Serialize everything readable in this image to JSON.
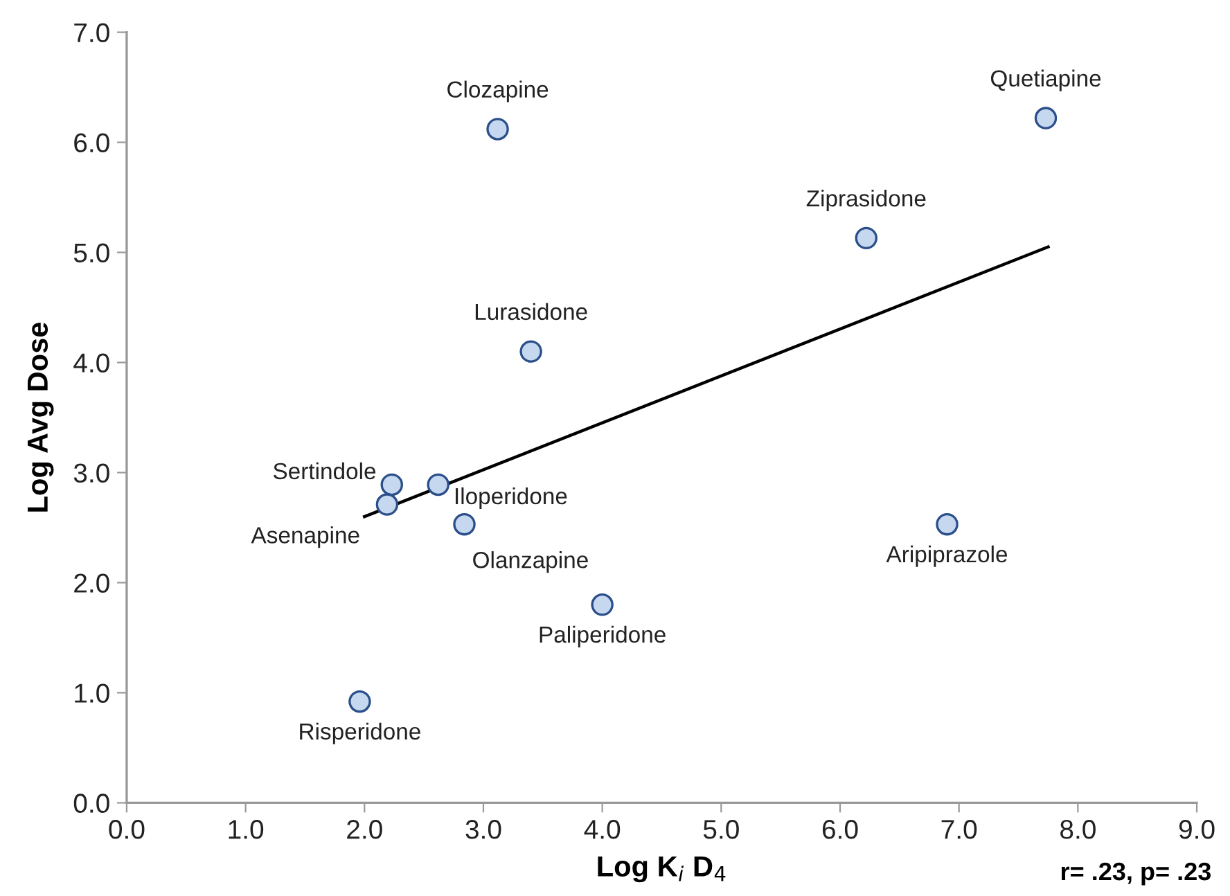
{
  "chart_data": {
    "type": "scatter",
    "xlabel": "Log K$_{i}$ D$_{4}$",
    "ylabel": "Log Avg Dose",
    "xlim": [
      0,
      9
    ],
    "ylim": [
      0,
      7
    ],
    "xticks": [
      {
        "value": 0,
        "label": "0.0"
      },
      {
        "value": 1,
        "label": "1.0"
      },
      {
        "value": 2,
        "label": "2.0"
      },
      {
        "value": 3,
        "label": "3.0"
      },
      {
        "value": 4,
        "label": "4.0"
      },
      {
        "value": 5,
        "label": "5.0"
      },
      {
        "value": 6,
        "label": "6.0"
      },
      {
        "value": 7,
        "label": "7.0"
      },
      {
        "value": 8,
        "label": "8.0"
      },
      {
        "value": 9,
        "label": "9.0"
      }
    ],
    "yticks": [
      {
        "value": 0,
        "label": "0.0"
      },
      {
        "value": 1,
        "label": "1.0"
      },
      {
        "value": 2,
        "label": "2.0"
      },
      {
        "value": 3,
        "label": "3.0"
      },
      {
        "value": 4,
        "label": "4.0"
      },
      {
        "value": 5,
        "label": "5.0"
      },
      {
        "value": 6,
        "label": "6.0"
      },
      {
        "value": 7,
        "label": "7.0"
      }
    ],
    "grid": false,
    "legend": false,
    "series": [
      {
        "marker": "circle",
        "color": "#c6d8ef",
        "x": [
          3.12,
          7.73,
          6.22,
          3.4,
          2.23,
          2.62,
          2.19,
          2.84,
          4.0,
          6.9,
          1.96
        ],
        "values": [
          6.12,
          6.22,
          5.13,
          4.1,
          2.89,
          2.89,
          2.71,
          2.53,
          1.8,
          2.53,
          0.92
        ]
      },
      {
        "type": "line",
        "marker": "none",
        "color": "#000000",
        "line_style": "solid",
        "x": [
          2.0,
          7.75
        ],
        "values": [
          2.6,
          5.05
        ]
      }
    ],
    "annotations": [
      {
        "text": "Clozapine",
        "x": 3.12,
        "y": 6.12
      },
      {
        "text": "Quetiapine",
        "x": 7.73,
        "y": 6.22
      },
      {
        "text": "Ziprasidone",
        "x": 6.22,
        "y": 5.13
      },
      {
        "text": "Lurasidone",
        "x": 3.4,
        "y": 4.1
      },
      {
        "text": "Sertindole",
        "x": 2.23,
        "y": 2.89
      },
      {
        "text": "Iloperidone",
        "x": 2.62,
        "y": 2.89
      },
      {
        "text": "Asenapine",
        "x": 2.19,
        "y": 2.71
      },
      {
        "text": "Olanzapine",
        "x": 2.84,
        "y": 2.53
      },
      {
        "text": "Paliperidone",
        "x": 4.0,
        "y": 1.8
      },
      {
        "text": "Aripiprazole",
        "x": 6.9,
        "y": 2.53
      },
      {
        "text": "Risperidone",
        "x": 1.96,
        "y": 0.92
      },
      "r= .23, p= .23"
    ]
  }
}
